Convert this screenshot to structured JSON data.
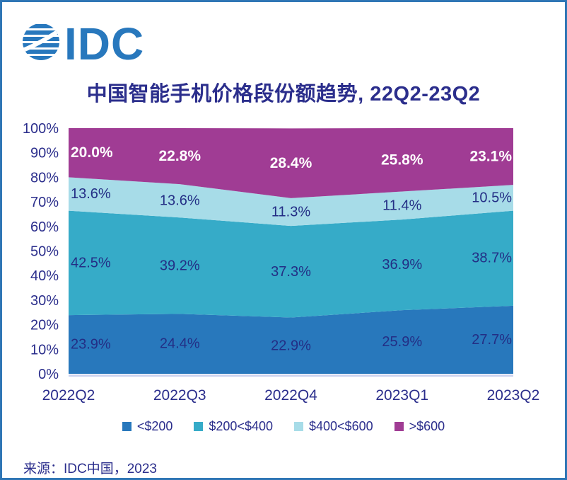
{
  "brand": {
    "logo_text": "IDC",
    "logo_color": "#2878bd"
  },
  "title": "中国智能手机价格段份额趋势, 22Q2-23Q2",
  "source": {
    "text": "来源：IDC中国，2023"
  },
  "colors": {
    "frame_border": "#2f76b5",
    "text_navy": "#2b2e8c",
    "data_label_navy": "#232e85",
    "axis_line": "#cdd3ee",
    "label_on_dark": "#ffffff"
  },
  "chart_data": {
    "type": "area",
    "stacked": true,
    "title": "中国智能手机价格段份额趋势, 22Q2-23Q2",
    "xlabel": "",
    "ylabel": "",
    "ylim": [
      0,
      100
    ],
    "grid": false,
    "legend_position": "bottom",
    "categories": [
      "2022Q2",
      "2022Q3",
      "2022Q4",
      "2023Q1",
      "2023Q2"
    ],
    "y_ticks": [
      "0%",
      "10%",
      "20%",
      "30%",
      "40%",
      "50%",
      "60%",
      "70%",
      "80%",
      "90%",
      "100%"
    ],
    "series": [
      {
        "name": "<$200",
        "color": "#2878bc",
        "values": [
          23.9,
          24.4,
          22.9,
          25.9,
          27.7
        ],
        "label_color": "#232e85",
        "label_bold": false
      },
      {
        "name": "$200<$400",
        "color": "#36abc8",
        "values": [
          42.5,
          39.2,
          37.3,
          36.9,
          38.7
        ],
        "label_color": "#232e85",
        "label_bold": false
      },
      {
        "name": "$400<$600",
        "color": "#a7dce8",
        "values": [
          13.6,
          13.6,
          11.3,
          11.4,
          10.5
        ],
        "label_color": "#232e85",
        "label_bold": false
      },
      {
        "name": ">$600",
        "color": "#a03c94",
        "values": [
          20.0,
          22.8,
          28.4,
          25.8,
          23.1
        ],
        "label_color": "#ffffff",
        "label_bold": true
      }
    ]
  }
}
